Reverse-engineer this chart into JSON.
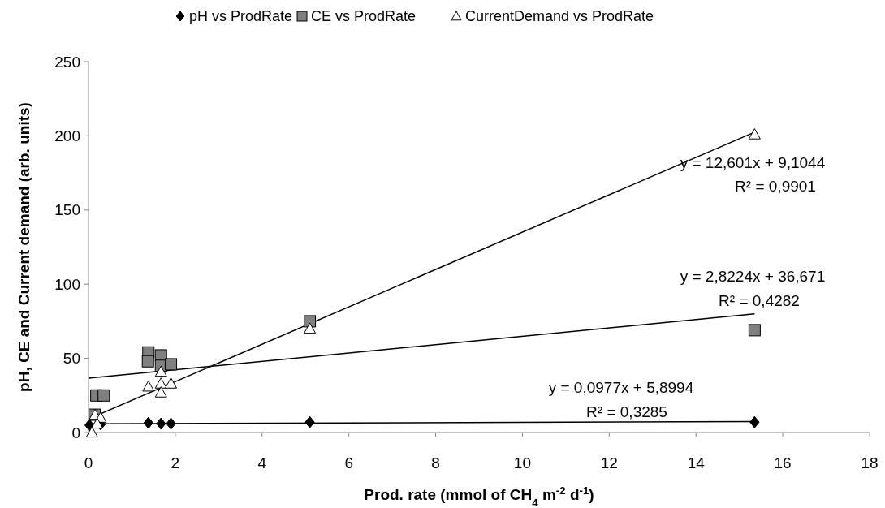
{
  "chart_data": {
    "type": "scatter",
    "xlabel": "Prod. rate (mmol of CH$_{4}$ m$^{-2}$ d$^{-1}$)",
    "ylabel": "pH, CE and Current demand (arb. units)",
    "xlim": [
      0,
      18
    ],
    "xticks": [
      0,
      2,
      4,
      6,
      8,
      10,
      12,
      14,
      16,
      18
    ],
    "ylim": [
      0,
      250
    ],
    "yticks": [
      0,
      50,
      100,
      150,
      200,
      250
    ],
    "grid": false,
    "legend": "top",
    "series": [
      {
        "name": "pH vs ProdRate",
        "marker": "diamond",
        "color": "#000000",
        "x": [
          0.02,
          0.28,
          1.38,
          1.67,
          1.9,
          5.1,
          15.35
        ],
        "values": [
          5,
          5.5,
          6.5,
          6,
          6,
          7,
          7
        ]
      },
      {
        "name": "CE vs ProdRate",
        "marker": "square",
        "color": "#808080",
        "x": [
          0.14,
          0.18,
          0.35,
          1.38,
          1.37,
          1.67,
          1.67,
          1.9,
          5.1,
          15.35
        ],
        "values": [
          12,
          25,
          25,
          54,
          48,
          52,
          45,
          46,
          75,
          69
        ]
      },
      {
        "name": "CurrentDemand vs ProdRate",
        "marker": "triangle",
        "color": "#ffffff",
        "x": [
          0.08,
          0.15,
          0.28,
          0.2,
          1.38,
          1.67,
          1.67,
          1.67,
          1.9,
          5.1,
          15.35
        ],
        "values": [
          0,
          12,
          10,
          6,
          31,
          41,
          33,
          27,
          33,
          70,
          201
        ]
      },
      {
        "type": "line",
        "color": "#000000",
        "x": [
          0.1,
          15.35
        ],
        "values": [
          10.4,
          202.5
        ]
      },
      {
        "type": "line",
        "color": "#000000",
        "x": [
          0,
          15.35
        ],
        "values": [
          36.7,
          80
        ]
      },
      {
        "type": "line",
        "color": "#000000",
        "x": [
          0.1,
          15.35
        ],
        "values": [
          5.9,
          7.4
        ]
      }
    ],
    "annotations": [
      "y = 12,601x + 9,1044",
      "R² = 0,9901",
      "y = 2,8224x + 36,671",
      "R² = 0,4282",
      "y = 0,0977x + 5,8994",
      "R² = 0,3285"
    ]
  }
}
